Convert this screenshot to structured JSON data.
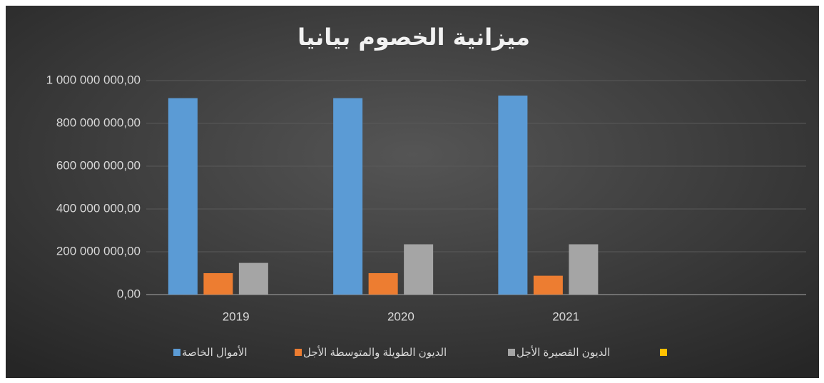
{
  "chart_data": {
    "type": "bar",
    "title": "ميزانية الخصوم بيانيا",
    "categories": [
      "2019",
      "2020",
      "2021",
      null
    ],
    "series": [
      {
        "name": "الأموال الخاصة",
        "color": "#5b9bd5",
        "values": [
          918000000,
          918000000,
          930000000,
          null
        ]
      },
      {
        "name": "الديون الطويلة والمتوسطة الأجل",
        "color": "#ed7d31",
        "values": [
          100000000,
          100000000,
          88000000,
          null
        ]
      },
      {
        "name": "الديون القصيرة الأجل",
        "color": "#a5a5a5",
        "values": [
          148000000,
          235000000,
          235000000,
          null
        ]
      },
      {
        "color": "#ffc000",
        "values": [
          null,
          null,
          null,
          null
        ]
      }
    ],
    "ylim": [
      0,
      1000000000
    ],
    "yticks": [
      {
        "value": 0,
        "label": "0,00"
      },
      {
        "value": 200000000,
        "label": "200 000 000,00"
      },
      {
        "value": 400000000,
        "label": "400 000 000,00"
      },
      {
        "value": 600000000,
        "label": "600 000 000,00"
      },
      {
        "value": 800000000,
        "label": "800 000 000,00"
      },
      {
        "value": 1000000000,
        "label": "1 000 000 000,00"
      }
    ],
    "grid": true,
    "legend": "bottom"
  }
}
